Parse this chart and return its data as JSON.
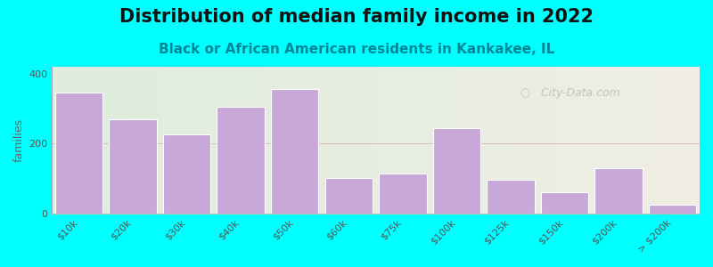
{
  "title": "Distribution of median family income in 2022",
  "subtitle": "Black or African American residents in Kankakee, IL",
  "ylabel": "families",
  "categories": [
    "$10k",
    "$20k",
    "$30k",
    "$40k",
    "$50k",
    "$60k",
    "$75k",
    "$100k",
    "$125k",
    "$150k",
    "$200k",
    "> $200k"
  ],
  "values": [
    345,
    270,
    225,
    305,
    355,
    100,
    115,
    245,
    95,
    60,
    130,
    25
  ],
  "bar_color": "#c8a8d8",
  "bar_edge_color": "#ffffff",
  "background_outer": "#00ffff",
  "bg_left_color": "#deeedd",
  "bg_right_color": "#f0ede5",
  "ylim": [
    0,
    420
  ],
  "yticks": [
    0,
    200,
    400
  ],
  "title_fontsize": 15,
  "subtitle_fontsize": 11,
  "ylabel_fontsize": 9,
  "tick_fontsize": 8,
  "watermark": "  City-Data.com"
}
